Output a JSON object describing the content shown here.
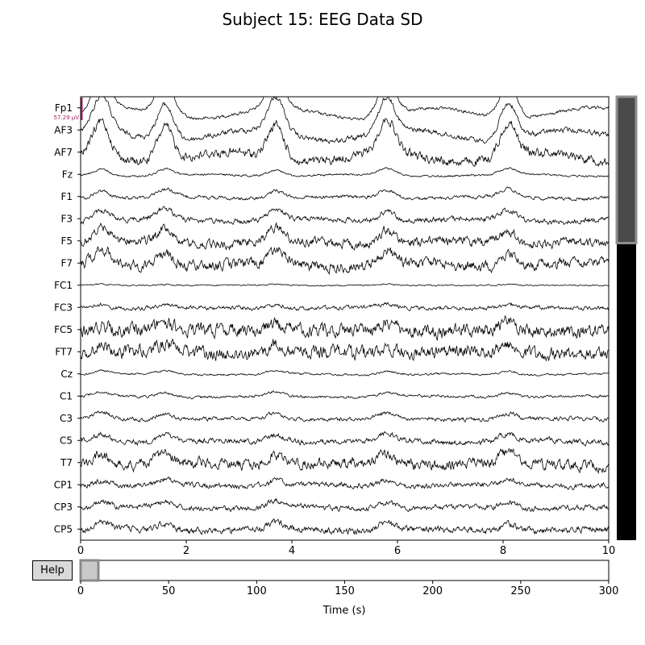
{
  "title": "Subject 15: EEG Data SD",
  "help_button": {
    "label": "Help"
  },
  "scale_bar": {
    "label": "57.29 µV",
    "color": "#a3225f"
  },
  "chart_data": {
    "type": "line",
    "title": "Subject 15: EEG Data SD",
    "channels": [
      "Fp1",
      "AF3",
      "AF7",
      "Fz",
      "F1",
      "F3",
      "F5",
      "F7",
      "FC1",
      "FC3",
      "FC5",
      "FT7",
      "Cz",
      "C1",
      "C3",
      "C5",
      "T7",
      "CP1",
      "CP3",
      "CP5"
    ],
    "main_axis": {
      "xlim": [
        0,
        10
      ],
      "xticks": [
        0,
        2,
        4,
        6,
        8,
        10
      ],
      "xlabel": ""
    },
    "overview_axis": {
      "xlim": [
        0,
        300
      ],
      "xticks": [
        0,
        50,
        100,
        150,
        200,
        250,
        300
      ],
      "xlabel": "Time (s)",
      "view_window": [
        0,
        10
      ]
    },
    "channel_scrollbar": {
      "visible_fraction": 0.33,
      "offset_fraction": 0
    },
    "trace_color": "#000000",
    "bump_times": [
      0.4,
      1.6,
      3.7,
      5.8,
      8.1
    ],
    "channel_amplitude": [
      1.0,
      1.0,
      0.95,
      0.18,
      0.22,
      0.3,
      0.38,
      0.38,
      0.03,
      0.09,
      0.2,
      0.2,
      0.1,
      0.12,
      0.16,
      0.2,
      0.28,
      0.16,
      0.18,
      0.2
    ],
    "channel_noise": [
      0.05,
      0.08,
      0.14,
      0.03,
      0.05,
      0.08,
      0.14,
      0.16,
      0.02,
      0.06,
      0.2,
      0.2,
      0.03,
      0.04,
      0.06,
      0.08,
      0.16,
      0.08,
      0.08,
      0.1
    ]
  }
}
